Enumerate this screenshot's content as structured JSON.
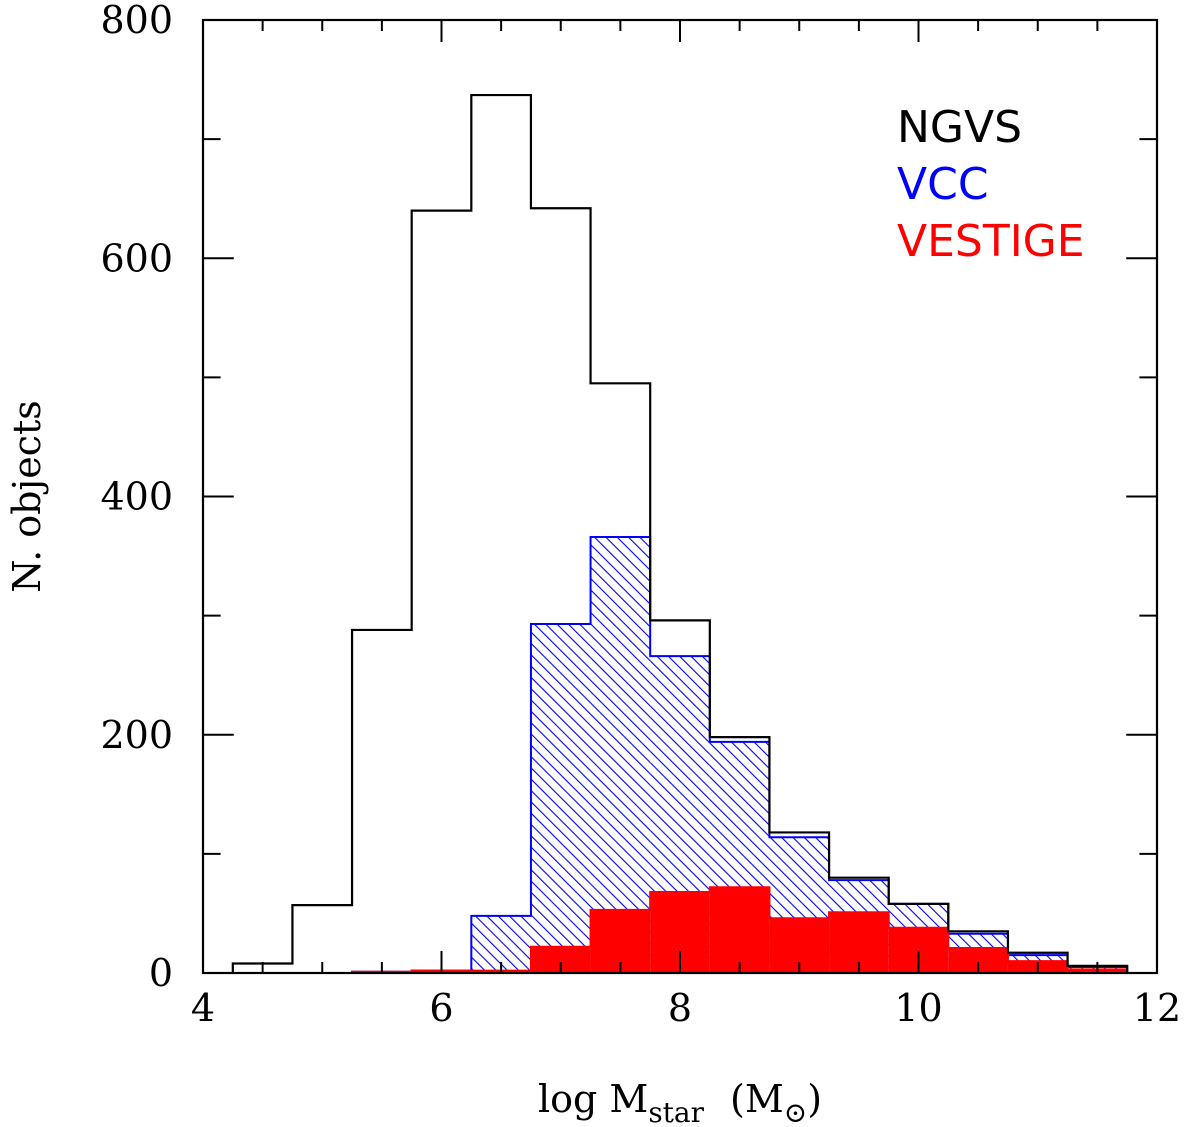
{
  "chart_data": {
    "type": "bar",
    "xlabel": {
      "main": "log M",
      "sub": "star",
      "unit": "(M",
      "unit_sub": "⊙",
      "unit_close": ")"
    },
    "ylabel": "N. objects",
    "xlim": [
      4,
      12
    ],
    "ylim": [
      0,
      800
    ],
    "x_ticks": [
      4,
      6,
      8,
      10,
      12
    ],
    "y_ticks": [
      0,
      200,
      400,
      600,
      800
    ],
    "x_minor_step": 0.5,
    "y_minor_step": 100,
    "bin_width": 0.5,
    "legend_position": "top-right",
    "series": [
      {
        "name": "NGVS",
        "color": "#000000",
        "style": "step-outline",
        "bin_starts": [
          4.25,
          4.75,
          5.25,
          5.75,
          6.25,
          6.75,
          7.25,
          7.75,
          8.25,
          8.75,
          9.25,
          9.75,
          10.25,
          10.75,
          11.25
        ],
        "values": [
          8,
          57,
          288,
          640,
          737,
          642,
          495,
          296,
          198,
          118,
          80,
          58,
          35,
          17,
          6
        ]
      },
      {
        "name": "VCC",
        "color": "#0000ff",
        "style": "hatched",
        "bin_starts": [
          5.25,
          5.75,
          6.25,
          6.75,
          7.25,
          7.75,
          8.25,
          8.75,
          9.25,
          9.75,
          10.25,
          10.75,
          11.25
        ],
        "values": [
          1,
          2,
          48,
          293,
          366,
          266,
          194,
          114,
          78,
          58,
          33,
          15,
          5
        ]
      },
      {
        "name": "VESTIGE",
        "color": "#ff0000",
        "style": "filled",
        "bin_starts": [
          5.25,
          5.75,
          6.25,
          6.75,
          7.25,
          7.75,
          8.25,
          8.75,
          9.25,
          9.75,
          10.25,
          10.75,
          11.25
        ],
        "values": [
          1,
          2,
          2,
          22,
          53,
          68,
          72,
          46,
          51,
          38,
          21,
          10,
          3
        ]
      }
    ]
  }
}
